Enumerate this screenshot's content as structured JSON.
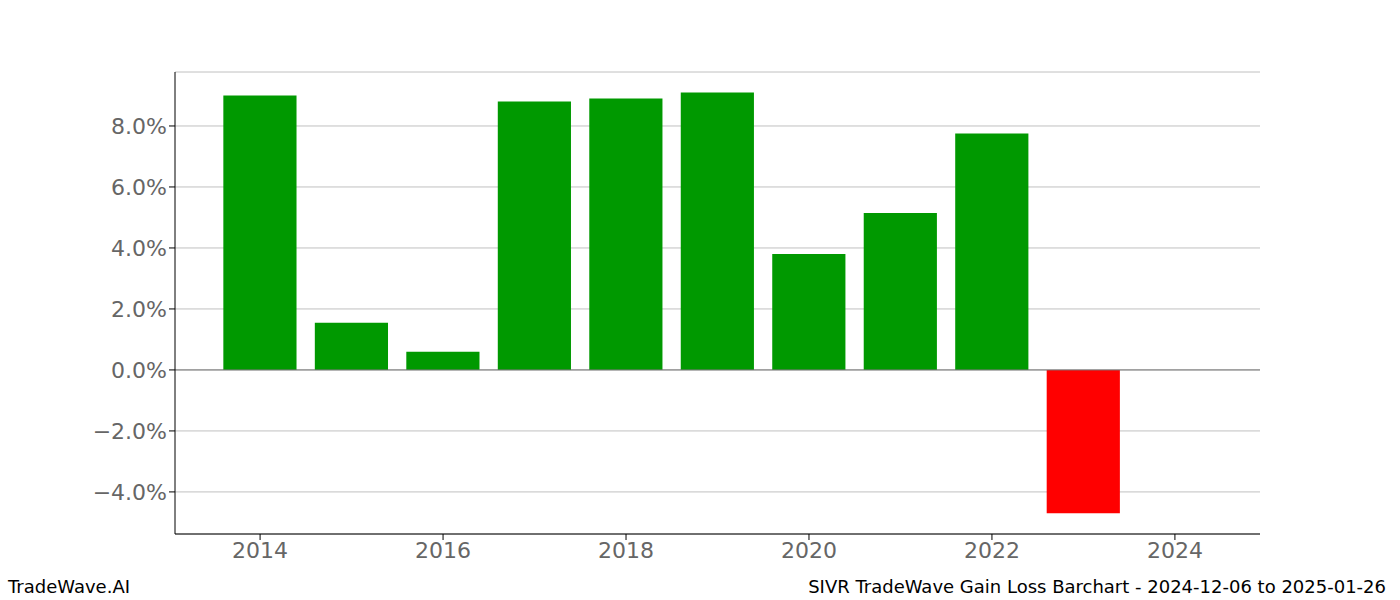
{
  "chart_data": {
    "type": "bar",
    "x": [
      2014,
      2015,
      2016,
      2017,
      2018,
      2019,
      2020,
      2021,
      2022,
      2023
    ],
    "values": [
      9.0,
      1.55,
      0.6,
      8.8,
      8.9,
      9.1,
      3.8,
      5.15,
      7.75,
      -4.7
    ],
    "colors": [
      "#009900",
      "#009900",
      "#009900",
      "#009900",
      "#009900",
      "#009900",
      "#009900",
      "#009900",
      "#009900",
      "#ff0000"
    ],
    "xlim": [
      2013.07,
      2024.93
    ],
    "xticks": [
      2014,
      2016,
      2018,
      2020,
      2022,
      2024
    ],
    "ylim": [
      -5.38,
      9.77
    ],
    "yticks": [
      {
        "value": -4,
        "label": "−4.0%"
      },
      {
        "value": -2,
        "label": "−2.0%"
      },
      {
        "value": 0,
        "label": "0.0%"
      },
      {
        "value": 2,
        "label": "2.0%"
      },
      {
        "value": 4,
        "label": "4.0%"
      },
      {
        "value": 6,
        "label": "6.0%"
      },
      {
        "value": 8,
        "label": "8.0%"
      }
    ],
    "grid": true,
    "footer_left": "TradeWave.AI",
    "footer_right": "SIVR TradeWave Gain Loss Barchart - 2024-12-06 to 2025-01-26"
  }
}
